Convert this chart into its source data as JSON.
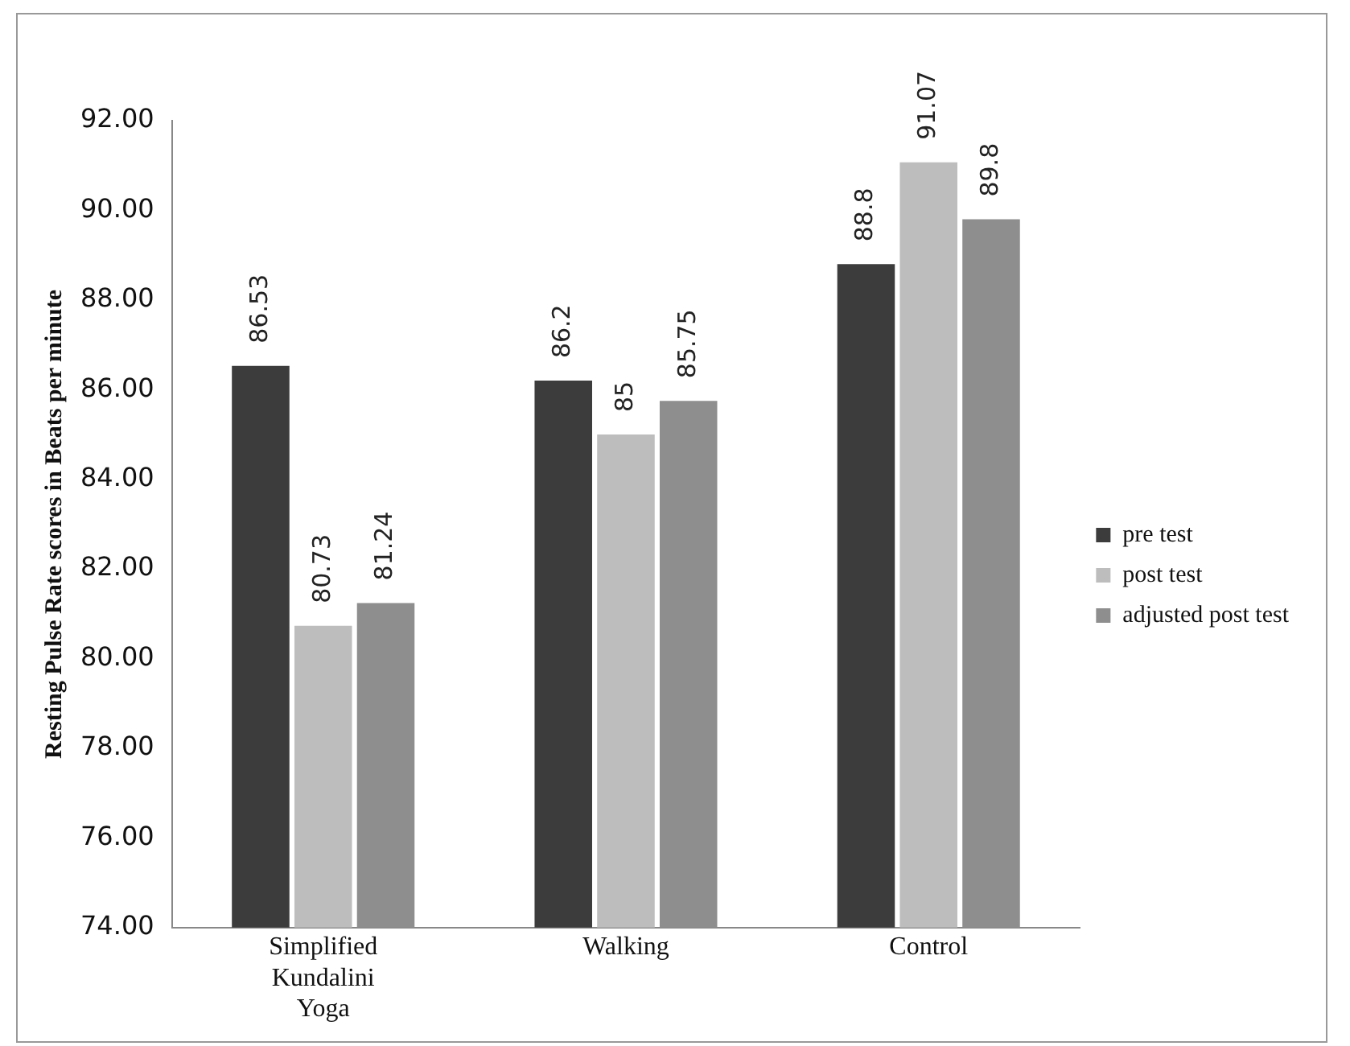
{
  "chart_data": {
    "type": "bar",
    "ylabel": "Resting Pulse Rate scores in Beats per minute",
    "categories": [
      "Simplified Kundalini Yoga",
      "Walking",
      "Control"
    ],
    "series": [
      {
        "name": "pre test",
        "color": "#3c3c3c",
        "values": [
          86.53,
          86.2,
          88.8
        ]
      },
      {
        "name": "post test",
        "color": "#bdbdbd",
        "values": [
          80.73,
          85,
          91.07
        ]
      },
      {
        "name": "adjusted post test",
        "color": "#8e8e8e",
        "values": [
          81.24,
          85.75,
          89.8
        ]
      }
    ],
    "ylim": [
      74,
      92
    ],
    "yticks": [
      {
        "value": 74,
        "label": "74.00"
      },
      {
        "value": 76,
        "label": "76.00"
      },
      {
        "value": 78,
        "label": "78.00"
      },
      {
        "value": 80,
        "label": "80.00"
      },
      {
        "value": 82,
        "label": "82.00"
      },
      {
        "value": 84,
        "label": "84.00"
      },
      {
        "value": 86,
        "label": "86.00"
      },
      {
        "value": 88,
        "label": "88.00"
      },
      {
        "value": 90,
        "label": "90.00"
      },
      {
        "value": 92,
        "label": "92.00"
      }
    ],
    "grid": false,
    "legend": "right",
    "data_labels": true
  }
}
